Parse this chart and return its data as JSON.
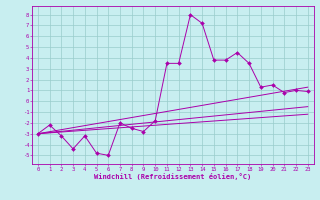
{
  "title": "",
  "xlabel": "Windchill (Refroidissement éolien,°C)",
  "bg_color": "#c8eef0",
  "line_color": "#aa00aa",
  "grid_color": "#99cccc",
  "xlim": [
    -0.5,
    23.5
  ],
  "ylim": [
    -5.8,
    8.8
  ],
  "xticks": [
    0,
    1,
    2,
    3,
    4,
    5,
    6,
    7,
    8,
    9,
    10,
    11,
    12,
    13,
    14,
    15,
    16,
    17,
    18,
    19,
    20,
    21,
    22,
    23
  ],
  "yticks": [
    -5,
    -4,
    -3,
    -2,
    -1,
    0,
    1,
    2,
    3,
    4,
    5,
    6,
    7,
    8
  ],
  "line_series": [
    {
      "x": [
        0,
        1,
        2,
        3,
        4,
        5,
        6,
        7,
        8,
        9,
        10,
        11,
        12,
        13,
        14,
        15,
        16,
        17,
        18,
        19,
        20,
        21,
        22,
        23
      ],
      "y": [
        -3.0,
        -2.2,
        -3.2,
        -4.4,
        -3.2,
        -4.8,
        -5.0,
        -2.0,
        -2.5,
        -2.8,
        -1.8,
        3.5,
        3.5,
        8.0,
        7.2,
        3.8,
        3.8,
        4.5,
        3.5,
        1.3,
        1.5,
        0.8,
        1.0,
        0.9
      ],
      "marker": true
    },
    {
      "x": [
        0,
        23
      ],
      "y": [
        -3.0,
        1.3
      ],
      "marker": false
    },
    {
      "x": [
        0,
        23
      ],
      "y": [
        -3.0,
        -0.5
      ],
      "marker": false
    },
    {
      "x": [
        0,
        23
      ],
      "y": [
        -3.0,
        -1.2
      ],
      "marker": false
    }
  ]
}
